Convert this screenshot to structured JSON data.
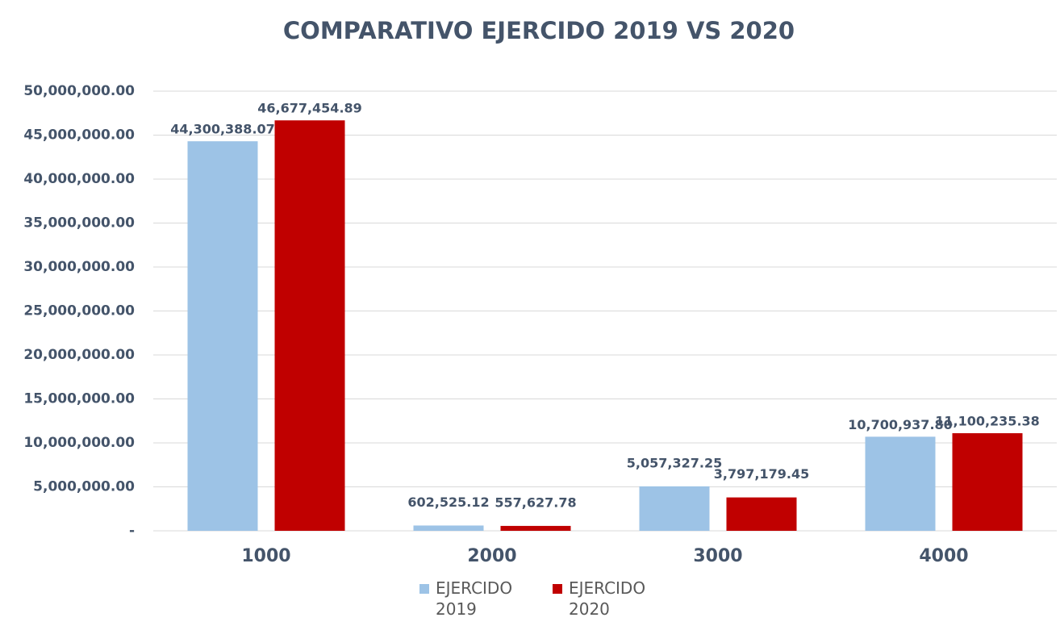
{
  "chart_data": {
    "type": "bar",
    "title": "COMPARATIVO EJERCIDO 2019 VS 2020",
    "categories": [
      "1000",
      "2000",
      "3000",
      "4000"
    ],
    "series": [
      {
        "name": "EJERCIDO 2019",
        "color": "#9dc3e6",
        "values": [
          44300388.07,
          602525.12,
          5057327.25,
          10700937.8
        ],
        "value_labels": [
          "44,300,388.07",
          "602,525.12",
          "5,057,327.25",
          "10,700,937.80"
        ]
      },
      {
        "name": "EJERCIDO 2020",
        "color": "#c00000",
        "values": [
          46677454.89,
          557627.78,
          3797179.45,
          11100235.38
        ],
        "value_labels": [
          "46,677,454.89",
          "557,627.78",
          "3,797,179.45",
          "11,100,235.38"
        ]
      }
    ],
    "ylim": [
      0,
      50000000
    ],
    "yticks": [
      {
        "value": 0,
        "label": "-"
      },
      {
        "value": 5000000,
        "label": "5,000,000.00"
      },
      {
        "value": 10000000,
        "label": "10,000,000.00"
      },
      {
        "value": 15000000,
        "label": "15,000,000.00"
      },
      {
        "value": 20000000,
        "label": "20,000,000.00"
      },
      {
        "value": 25000000,
        "label": "25,000,000.00"
      },
      {
        "value": 30000000,
        "label": "30,000,000.00"
      },
      {
        "value": 35000000,
        "label": "35,000,000.00"
      },
      {
        "value": 40000000,
        "label": "40,000,000.00"
      },
      {
        "value": 45000000,
        "label": "45,000,000.00"
      },
      {
        "value": 50000000,
        "label": "50,000,000.00"
      }
    ],
    "grid": true
  }
}
